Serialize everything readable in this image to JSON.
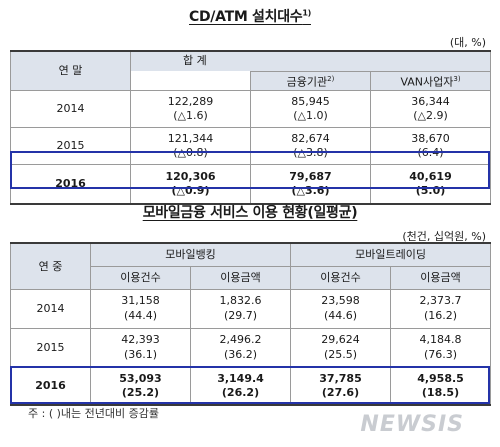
{
  "table1": {
    "title": "CD/ATM 설치대수",
    "title_sup": "1)",
    "unit": "(대, %)",
    "header": {
      "year_col": "연 말",
      "total": "합    계",
      "financial": "금융기관",
      "financial_sup": "2)",
      "van": "VAN사업자",
      "van_sup": "3)"
    },
    "rows": [
      {
        "year": "2014",
        "total": "122,289",
        "total_chg": "(△1.6)",
        "fin": "85,945",
        "fin_chg": "(△1.0)",
        "van": "36,344",
        "van_chg": "(△2.9)"
      },
      {
        "year": "2015",
        "total": "121,344",
        "total_chg": "(△0.8)",
        "fin": "82,674",
        "fin_chg": "(△3.8)",
        "van": "38,670",
        "van_chg": "(6.4)"
      },
      {
        "year": "2016",
        "total": "120,306",
        "total_chg": "(△0.9)",
        "fin": "79,687",
        "fin_chg": "(△3.6)",
        "van": "40,619",
        "van_chg": "(5.0)"
      }
    ]
  },
  "table2": {
    "title": "모바일금융 서비스 이용 현황(일평균)",
    "unit": "(천건, 십억원, %)",
    "header": {
      "year_col": "연 중",
      "banking": "모바일뱅킹",
      "trading": "모바일트레이딩",
      "count": "이용건수",
      "amount": "이용금액"
    },
    "rows": [
      {
        "year": "2014",
        "b_cnt": "31,158",
        "b_cnt_chg": "(44.4)",
        "b_amt": "1,832.6",
        "b_amt_chg": "(29.7)",
        "t_cnt": "23,598",
        "t_cnt_chg": "(44.6)",
        "t_amt": "2,373.7",
        "t_amt_chg": "(16.2)"
      },
      {
        "year": "2015",
        "b_cnt": "42,393",
        "b_cnt_chg": "(36.1)",
        "b_amt": "2,496.2",
        "b_amt_chg": "(36.2)",
        "t_cnt": "29,624",
        "t_cnt_chg": "(25.5)",
        "t_amt": "4,184.8",
        "t_amt_chg": "(76.3)"
      },
      {
        "year": "2016",
        "b_cnt": "53,093",
        "b_cnt_chg": "(25.2)",
        "b_amt": "3,149.4",
        "b_amt_chg": "(26.2)",
        "t_cnt": "37,785",
        "t_cnt_chg": "(27.6)",
        "t_amt": "4,958.5",
        "t_amt_chg": "(18.5)"
      }
    ]
  },
  "note": "주 : (   )내는 전년대비 증감률",
  "watermark": "NEWSIS",
  "colors": {
    "header_bg": "#dde3ec",
    "highlight": "#2433a8"
  }
}
